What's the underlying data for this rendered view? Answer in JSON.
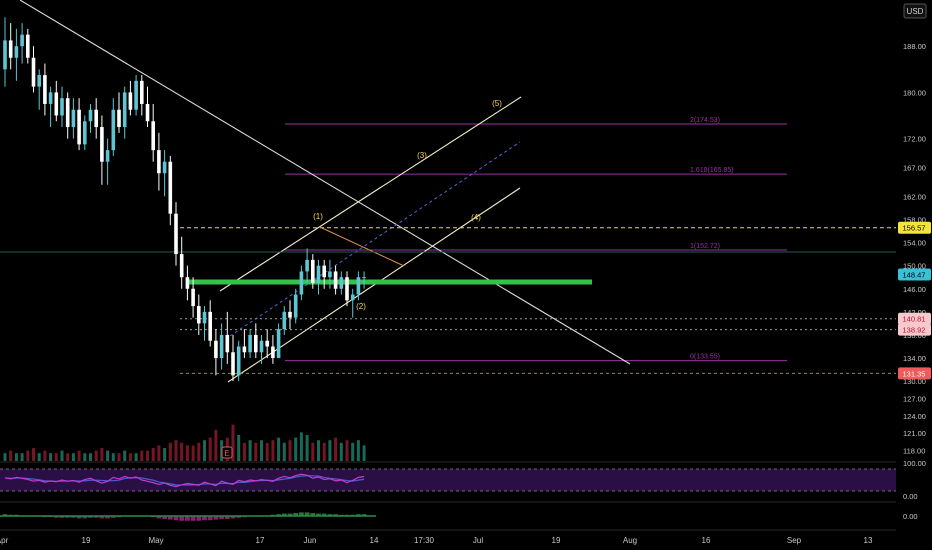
{
  "currency": "USD",
  "colors": {
    "background": "#000000",
    "up": "#5fc5d3",
    "down": "#ffffff",
    "trendline": "#d9d9d9",
    "channel": "#f2f0c8",
    "support_zone": "#33c24a",
    "fib": "#9b2fa0",
    "wave_label": "#f0d94a",
    "resistance_dashed": "#f0d94a",
    "rsi_fill": "#2a0f45",
    "rsi_line_a": "#c03bd0",
    "rsi_line_b": "#4a5bd9",
    "macd_pos": "#1f7a3a",
    "macd_neg": "#8a1f6a",
    "volume_up": "#1b7b6a",
    "volume_down": "#8a1a2a"
  },
  "price_axis": {
    "ticks": [
      "188.00",
      "180.00",
      "172.00",
      "167.00",
      "162.00",
      "158.00",
      "154.00",
      "150.00",
      "146.00",
      "142.00",
      "138.00",
      "134.00",
      "130.00",
      "127.00",
      "124.00",
      "121.00",
      "118.00"
    ]
  },
  "price_tags": [
    {
      "label": "156.57",
      "price": 156.57,
      "bg": "#f3e33b",
      "fg": "#000000",
      "line": "dashed"
    },
    {
      "label": "148.47",
      "price": 148.47,
      "bg": "#39c0d8",
      "fg": "#000000",
      "line": "solid-teal"
    },
    {
      "label": "140.81",
      "price": 140.81,
      "bg": "#f7c9cd",
      "fg": "#b0132d",
      "line": "dotted"
    },
    {
      "label": "138.92",
      "price": 138.92,
      "bg": "#f7c9cd",
      "fg": "#b0132d",
      "line": "dotted"
    },
    {
      "label": "131.35",
      "price": 131.35,
      "bg": "#f05a5a",
      "fg": "#ffffff",
      "line": "dashed-red"
    }
  ],
  "fib_levels": [
    {
      "label": "2(174.53)",
      "price": 174.53
    },
    {
      "label": "1.618(165.85)",
      "price": 165.85
    },
    {
      "label": "1(152.72)",
      "price": 152.72
    },
    {
      "label": "0(133.55)",
      "price": 133.55
    }
  ],
  "wave_labels": [
    "(1)",
    "(2)",
    "(3)",
    "(4)",
    "(5)"
  ],
  "rsi_axis": [
    "100.00",
    "0.00"
  ],
  "macd_axis": [
    "0.00"
  ],
  "time_axis": [
    "Apr",
    "19",
    "May",
    "17",
    "Jun",
    "14",
    "17:30",
    "Jul",
    "19",
    "Aug",
    "16",
    "Sep",
    "13"
  ],
  "indicator_badge": "E",
  "chart_data": {
    "type": "candlestick",
    "title": "",
    "ylabel": "USD",
    "ylim": [
      116,
      196
    ],
    "candles": [
      {
        "o": 184,
        "h": 193,
        "l": 181,
        "c": 189
      },
      {
        "o": 189,
        "h": 192,
        "l": 184,
        "c": 186
      },
      {
        "o": 186,
        "h": 191,
        "l": 182,
        "c": 188
      },
      {
        "o": 188,
        "h": 192,
        "l": 185,
        "c": 190
      },
      {
        "o": 190,
        "h": 191,
        "l": 185,
        "c": 186
      },
      {
        "o": 186,
        "h": 188,
        "l": 180,
        "c": 181
      },
      {
        "o": 181,
        "h": 184,
        "l": 177,
        "c": 183
      },
      {
        "o": 183,
        "h": 185,
        "l": 176,
        "c": 178
      },
      {
        "o": 178,
        "h": 181,
        "l": 174,
        "c": 180
      },
      {
        "o": 180,
        "h": 182,
        "l": 175,
        "c": 176
      },
      {
        "o": 176,
        "h": 181,
        "l": 174,
        "c": 179
      },
      {
        "o": 179,
        "h": 180,
        "l": 172,
        "c": 174
      },
      {
        "o": 174,
        "h": 179,
        "l": 172,
        "c": 177
      },
      {
        "o": 177,
        "h": 179,
        "l": 170,
        "c": 171
      },
      {
        "o": 171,
        "h": 176,
        "l": 170,
        "c": 175
      },
      {
        "o": 175,
        "h": 178,
        "l": 173,
        "c": 177
      },
      {
        "o": 177,
        "h": 179,
        "l": 172,
        "c": 174
      },
      {
        "o": 174,
        "h": 176,
        "l": 164,
        "c": 168
      },
      {
        "o": 168,
        "h": 172,
        "l": 164,
        "c": 170
      },
      {
        "o": 170,
        "h": 179,
        "l": 169,
        "c": 177
      },
      {
        "o": 177,
        "h": 180,
        "l": 173,
        "c": 174
      },
      {
        "o": 174,
        "h": 181,
        "l": 172,
        "c": 180
      },
      {
        "o": 180,
        "h": 182,
        "l": 176,
        "c": 177
      },
      {
        "o": 177,
        "h": 183,
        "l": 176,
        "c": 182
      },
      {
        "o": 182,
        "h": 183,
        "l": 176,
        "c": 178
      },
      {
        "o": 178,
        "h": 181,
        "l": 174,
        "c": 175
      },
      {
        "o": 175,
        "h": 178,
        "l": 168,
        "c": 170
      },
      {
        "o": 170,
        "h": 173,
        "l": 163,
        "c": 166
      },
      {
        "o": 166,
        "h": 170,
        "l": 162,
        "c": 168
      },
      {
        "o": 168,
        "h": 169,
        "l": 157,
        "c": 159
      },
      {
        "o": 159,
        "h": 161,
        "l": 150,
        "c": 152
      },
      {
        "o": 152,
        "h": 155,
        "l": 146,
        "c": 148
      },
      {
        "o": 148,
        "h": 150,
        "l": 144,
        "c": 146
      },
      {
        "o": 146,
        "h": 148,
        "l": 141,
        "c": 143
      },
      {
        "o": 143,
        "h": 145,
        "l": 138,
        "c": 140
      },
      {
        "o": 140,
        "h": 143,
        "l": 137,
        "c": 142
      },
      {
        "o": 142,
        "h": 144,
        "l": 136,
        "c": 137
      },
      {
        "o": 137,
        "h": 139,
        "l": 131,
        "c": 134
      },
      {
        "o": 134,
        "h": 140,
        "l": 132,
        "c": 138
      },
      {
        "o": 138,
        "h": 142,
        "l": 133,
        "c": 135
      },
      {
        "o": 135,
        "h": 138,
        "l": 130,
        "c": 131
      },
      {
        "o": 131,
        "h": 137,
        "l": 130,
        "c": 136
      },
      {
        "o": 136,
        "h": 139,
        "l": 134,
        "c": 135
      },
      {
        "o": 135,
        "h": 139,
        "l": 134,
        "c": 138
      },
      {
        "o": 138,
        "h": 140,
        "l": 134,
        "c": 135
      },
      {
        "o": 135,
        "h": 138,
        "l": 133,
        "c": 137
      },
      {
        "o": 137,
        "h": 139,
        "l": 134,
        "c": 136
      },
      {
        "o": 136,
        "h": 138,
        "l": 133,
        "c": 134
      },
      {
        "o": 134,
        "h": 140,
        "l": 134,
        "c": 139
      },
      {
        "o": 139,
        "h": 143,
        "l": 138,
        "c": 142
      },
      {
        "o": 142,
        "h": 144,
        "l": 139,
        "c": 141
      },
      {
        "o": 141,
        "h": 146,
        "l": 140,
        "c": 145
      },
      {
        "o": 145,
        "h": 150,
        "l": 144,
        "c": 149
      },
      {
        "o": 149,
        "h": 153,
        "l": 147,
        "c": 151
      },
      {
        "o": 151,
        "h": 152,
        "l": 146,
        "c": 147
      },
      {
        "o": 147,
        "h": 151,
        "l": 145,
        "c": 150
      },
      {
        "o": 150,
        "h": 151,
        "l": 146,
        "c": 148
      },
      {
        "o": 148,
        "h": 151,
        "l": 146,
        "c": 149
      },
      {
        "o": 149,
        "h": 150,
        "l": 145,
        "c": 146
      },
      {
        "o": 146,
        "h": 149,
        "l": 145,
        "c": 148
      },
      {
        "o": 148,
        "h": 149,
        "l": 143,
        "c": 144
      },
      {
        "o": 144,
        "h": 146,
        "l": 141,
        "c": 145
      },
      {
        "o": 145,
        "h": 149,
        "l": 144,
        "c": 148
      },
      {
        "o": 148,
        "h": 149,
        "l": 146,
        "c": 148
      }
    ],
    "volume": [
      3,
      4,
      3,
      3,
      4,
      5,
      3,
      4,
      3,
      3,
      4,
      3,
      3,
      4,
      3,
      3,
      4,
      5,
      4,
      3,
      3,
      4,
      3,
      3,
      4,
      4,
      5,
      6,
      5,
      7,
      8,
      7,
      6,
      6,
      7,
      8,
      9,
      12,
      8,
      9,
      14,
      10,
      7,
      8,
      7,
      8,
      7,
      8,
      9,
      7,
      8,
      9,
      11,
      10,
      7,
      8,
      7,
      8,
      9,
      7,
      8,
      7,
      8,
      6
    ],
    "rsi": [
      60,
      55,
      62,
      58,
      52,
      45,
      48,
      40,
      46,
      42,
      50,
      44,
      48,
      40,
      52,
      58,
      46,
      36,
      44,
      62,
      55,
      66,
      58,
      64,
      50,
      44,
      38,
      30,
      36,
      26,
      20,
      28,
      34,
      30,
      26,
      40,
      32,
      24,
      44,
      36,
      30,
      48,
      42,
      50,
      46,
      52,
      48,
      44,
      58,
      66,
      60,
      70,
      76,
      72,
      58,
      64,
      52,
      56,
      46,
      50,
      38,
      48,
      62,
      66
    ],
    "macd": [
      0.3,
      0.2,
      0.2,
      0.1,
      0.0,
      -0.1,
      -0.1,
      -0.2,
      -0.2,
      -0.3,
      -0.3,
      -0.3,
      -0.3,
      -0.4,
      -0.4,
      -0.3,
      -0.3,
      -0.4,
      -0.4,
      -0.3,
      -0.2,
      -0.1,
      0.0,
      0.1,
      0.0,
      -0.1,
      -0.2,
      -0.4,
      -0.5,
      -0.6,
      -0.7,
      -0.8,
      -0.8,
      -0.8,
      -0.8,
      -0.7,
      -0.7,
      -0.6,
      -0.5,
      -0.5,
      -0.4,
      -0.3,
      -0.2,
      -0.1,
      0.0,
      0.1,
      0.1,
      0.2,
      0.3,
      0.4,
      0.4,
      0.5,
      0.6,
      0.6,
      0.5,
      0.4,
      0.4,
      0.3,
      0.3,
      0.2,
      0.2,
      0.2,
      0.3,
      0.3
    ]
  }
}
